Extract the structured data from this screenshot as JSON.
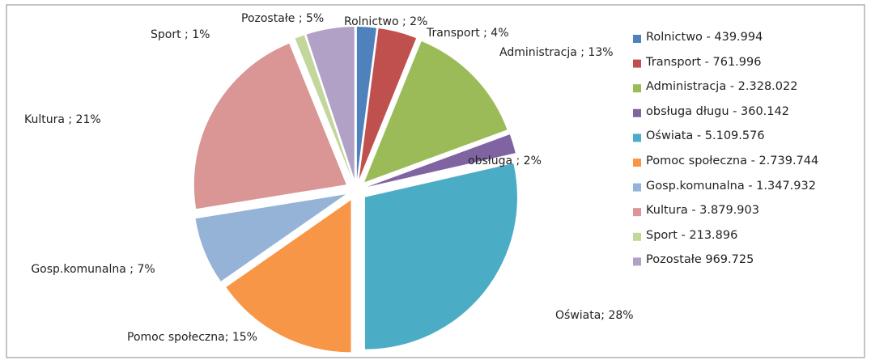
{
  "chart_data": {
    "type": "pie",
    "categories": [
      "Rolnictwo - 439.994",
      "Transport -  761.996",
      "Administracja - 2.328.022",
      "obsługa długu - 360.142",
      "Oświata - 5.109.576",
      "Pomoc społeczna - 2.739.744",
      "Gosp.komunalna - 1.347.932",
      "Kultura - 3.879.903",
      "Sport - 213.896",
      "Pozostałe 969.725"
    ],
    "values": [
      2,
      4,
      13,
      2,
      28,
      15,
      7,
      21,
      1,
      5
    ],
    "value_labels": [
      "Rolnictwo ; 2%",
      "Transport ; 4%",
      "Administracja ; 13%",
      "obsługa ; 2%",
      "Oświata; 28%",
      "Pomoc społeczna; 15%",
      "Gosp.komunalna ; 7%",
      "Kultura ; 21%",
      "Sport ; 1%",
      "Pozostałe ; 5%"
    ],
    "colors": [
      "#4f81bd",
      "#c0504d",
      "#9bbb59",
      "#8064a2",
      "#4bacc6",
      "#f79646",
      "#95b3d7",
      "#d99694",
      "#c3d69b",
      "#b2a1c7"
    ],
    "legend": "right"
  }
}
